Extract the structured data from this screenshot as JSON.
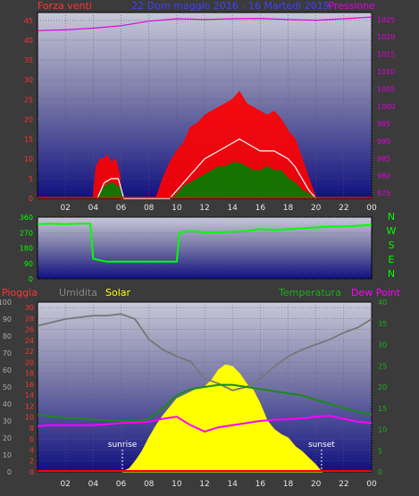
{
  "colors": {
    "background": "#3b3b3b",
    "wind": "#ff0000",
    "gust": "#ff0000",
    "avg_wind": "#ffffff",
    "wind_low": "#008000",
    "pressure": "#e000e0",
    "direction": "#00ff00",
    "rain": "#ff0000",
    "humidity": "#777777",
    "solar": "#ffff00",
    "temperature": "#1a8a1a",
    "dew_point": "#ff00ff",
    "axis_left": "#ff3333",
    "axis_right_pressure": "#e000e0",
    "axis_right_temp": "#19b019",
    "title": "#4040ff"
  },
  "chart_data": [
    {
      "type": "line",
      "panel": "wind-pressure",
      "title": "22 Dom maggio 2016 - 16 Martedì 2019",
      "left_label": "Forza venti",
      "right_label": "Pressione",
      "x_ticks": [
        "02",
        "04",
        "06",
        "08",
        "10",
        "12",
        "14",
        "16",
        "18",
        "20",
        "22",
        "00"
      ],
      "y_left_ticks": [
        0,
        5,
        10,
        15,
        20,
        25,
        30,
        35,
        40,
        45
      ],
      "y_left_range": [
        0,
        47
      ],
      "y_right_ticks": [
        975,
        980,
        985,
        990,
        995,
        1000,
        1005,
        1010,
        1015,
        1020,
        1025
      ],
      "y_right_range": [
        973.5,
        1027
      ],
      "series": [
        {
          "key": "gust",
          "x": [
            4.0,
            4.2,
            4.5,
            4.8,
            5.0,
            5.3,
            5.6,
            5.9,
            6.0,
            8.5,
            9.0,
            9.5,
            10.0,
            10.5,
            11.0,
            11.5,
            12.0,
            12.5,
            13.0,
            13.5,
            14.0,
            14.5,
            15.0,
            15.5,
            16.0,
            16.5,
            17.0,
            17.5,
            18.0,
            18.5,
            19.0,
            19.5,
            20.0
          ],
          "y": [
            0,
            8,
            10,
            10,
            11,
            9,
            10,
            6,
            0,
            0,
            5,
            9,
            12,
            14,
            18,
            19,
            21,
            22,
            23,
            24,
            25,
            27,
            24,
            23,
            22,
            21,
            22,
            20,
            17,
            15,
            10,
            5,
            0
          ]
        },
        {
          "key": "avg_wind",
          "x": [
            4.3,
            4.8,
            5.3,
            5.8,
            6.2,
            9.5,
            10.0,
            10.5,
            11.0,
            11.5,
            12.0,
            12.5,
            13.0,
            13.5,
            14.0,
            14.5,
            15.0,
            15.5,
            16.0,
            16.5,
            17.0,
            17.5,
            18.0,
            18.5,
            19.0,
            19.5,
            20.0
          ],
          "y": [
            0,
            4,
            5,
            5,
            0,
            0,
            2,
            4,
            6,
            8,
            10,
            11,
            12,
            13,
            14,
            15,
            14,
            13,
            12,
            12,
            12,
            11,
            10,
            8,
            5,
            2,
            0
          ]
        },
        {
          "key": "wind_low",
          "x": [
            4.3,
            4.8,
            5.3,
            5.8,
            6.2,
            9.5,
            10.0,
            10.5,
            11.0,
            11.5,
            12.0,
            12.5,
            13.0,
            13.5,
            14.0,
            14.5,
            15.0,
            15.5,
            16.0,
            16.5,
            17.0,
            17.5,
            18.0,
            18.5,
            19.0,
            19.5,
            20.0
          ],
          "y": [
            0,
            3,
            4,
            3,
            0,
            0,
            1,
            3,
            4,
            5,
            6,
            7,
            8,
            8,
            9,
            9,
            8,
            7,
            7,
            8,
            7,
            7,
            5,
            4,
            2,
            1,
            0
          ]
        },
        {
          "key": "pressure",
          "x": [
            0,
            2,
            4,
            6,
            8,
            10,
            12,
            14,
            16,
            18,
            20,
            22,
            24
          ],
          "y": [
            1021.8,
            1022.0,
            1022.5,
            1023.2,
            1024.5,
            1025.2,
            1025.0,
            1025.2,
            1025.3,
            1025.0,
            1024.8,
            1025.2,
            1025.7
          ]
        }
      ]
    },
    {
      "type": "line",
      "panel": "wind-direction",
      "y_ticks": [
        0,
        90,
        180,
        270,
        360
      ],
      "y_range": [
        0,
        360
      ],
      "right_labels": [
        "N",
        "W",
        "S",
        "E",
        "N"
      ],
      "series": [
        {
          "key": "direction",
          "x": [
            0,
            1,
            2,
            3,
            3.8,
            4.0,
            4.5,
            5,
            6,
            7,
            8,
            9,
            10.0,
            10.2,
            11,
            12,
            13,
            14,
            15,
            16,
            17,
            18,
            19,
            20,
            21,
            22,
            23,
            24
          ],
          "y": [
            320,
            322,
            320,
            322,
            322,
            118,
            108,
            100,
            100,
            100,
            100,
            100,
            100,
            270,
            280,
            270,
            272,
            275,
            280,
            290,
            285,
            290,
            295,
            300,
            305,
            305,
            310,
            315
          ]
        }
      ]
    },
    {
      "type": "area",
      "panel": "rain-humidity-solar-temp",
      "labels": {
        "rain": "Pioggia",
        "humidity": "Umidita",
        "solar": "Solar",
        "temperature": "Temperatura",
        "dew_point": "Dew Point"
      },
      "annotations": [
        {
          "text": "sunrise",
          "x": 6.1
        },
        {
          "text": "sunset",
          "x": 20.4
        }
      ],
      "x_ticks": [
        "02",
        "04",
        "06",
        "08",
        "10",
        "12",
        "14",
        "16",
        "18",
        "20",
        "22",
        "00"
      ],
      "y_humidity_ticks": [
        0,
        10,
        20,
        30,
        40,
        50,
        60,
        70,
        80,
        90,
        100
      ],
      "y_humidity_range": [
        0,
        100
      ],
      "y_rain_ticks": [
        0,
        2,
        4,
        6,
        8,
        10,
        12,
        14,
        16,
        18,
        20,
        22,
        24,
        26,
        28,
        30
      ],
      "y_rain_range": [
        0,
        31
      ],
      "y_temp_ticks": [
        0,
        5,
        10,
        15,
        20,
        25,
        30,
        35,
        40
      ],
      "y_temp_range": [
        0,
        40
      ],
      "series": [
        {
          "key": "humidity",
          "x": [
            0,
            1,
            2,
            3,
            4,
            5,
            6,
            7,
            8,
            9,
            10,
            11,
            12,
            13,
            14,
            15,
            16,
            17,
            18,
            19,
            20,
            21,
            22,
            23,
            24
          ],
          "y": [
            86,
            88,
            90,
            91,
            92,
            92,
            93,
            90,
            78,
            72,
            68,
            65,
            55,
            52,
            48,
            50,
            55,
            62,
            68,
            72,
            75,
            78,
            82,
            85,
            90
          ]
        },
        {
          "key": "solar",
          "x": [
            6.1,
            6.6,
            7.0,
            7.5,
            8.0,
            8.5,
            9.0,
            9.5,
            10.0,
            10.5,
            11.0,
            11.5,
            12.0,
            12.5,
            13.0,
            13.5,
            14.0,
            14.5,
            15.0,
            15.5,
            16.0,
            16.5,
            17.0,
            17.5,
            18.0,
            18.5,
            19.0,
            19.5,
            20.0,
            20.4
          ],
          "y": [
            0,
            2,
            6,
            12,
            20,
            27,
            33,
            38,
            43,
            45,
            47,
            49,
            50,
            54,
            60,
            63,
            62,
            58,
            52,
            48,
            40,
            30,
            25,
            22,
            20,
            15,
            12,
            8,
            4,
            0
          ]
        },
        {
          "key": "temperature",
          "x": [
            0,
            1,
            2,
            3,
            4,
            5,
            6,
            7,
            8,
            9,
            10,
            11,
            12,
            13,
            14,
            15,
            16,
            17,
            18,
            19,
            20,
            21,
            22,
            23,
            24
          ],
          "y": [
            13.5,
            13.0,
            12.7,
            12.6,
            12.3,
            12.2,
            12.0,
            12.0,
            12.5,
            15.0,
            18.0,
            19.5,
            20.0,
            20.5,
            20.5,
            20.0,
            19.5,
            19.0,
            18.5,
            18.0,
            17.0,
            16.0,
            15.0,
            14.2,
            13.5
          ]
        },
        {
          "key": "dew_point",
          "x": [
            0,
            1,
            2,
            3,
            4,
            5,
            6,
            7,
            8,
            9,
            10,
            11,
            12,
            13,
            14,
            15,
            16,
            17,
            18,
            19,
            20,
            21,
            22,
            23,
            24
          ],
          "y": [
            10.8,
            11.0,
            11.0,
            11.0,
            11.0,
            11.2,
            11.5,
            11.6,
            11.8,
            12.5,
            13.0,
            11.0,
            9.5,
            10.5,
            11.0,
            11.5,
            12.0,
            12.3,
            12.4,
            12.6,
            13.0,
            13.2,
            12.5,
            11.8,
            11.5
          ]
        },
        {
          "key": "rain",
          "x": [
            0,
            24
          ],
          "y": [
            0,
            0
          ]
        }
      ]
    }
  ]
}
